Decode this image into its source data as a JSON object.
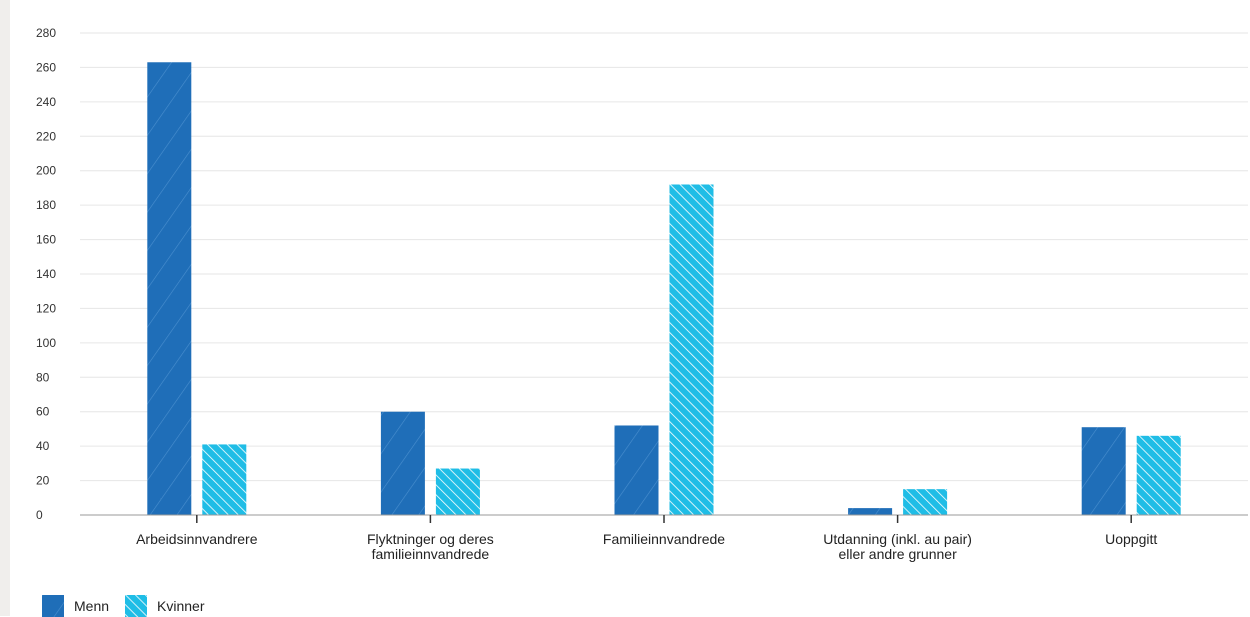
{
  "chart_data": {
    "type": "bar",
    "categories": [
      "Arbeidsinnvandrere",
      "Flyktninger og deres\nfamilieinnvandrede",
      "Familieinnvandrede",
      "Utdanning (inkl. au pair)\neller andre grunner",
      "Uoppgitt"
    ],
    "series": [
      {
        "name": "Menn",
        "values": [
          263,
          60,
          52,
          4,
          51
        ],
        "color": "#1f6eb8",
        "pattern": "hatch-fine"
      },
      {
        "name": "Kvinner",
        "values": [
          41,
          27,
          192,
          15,
          46
        ],
        "color": "#1fbde6",
        "pattern": "hatch-diagonal"
      }
    ],
    "y_ticks": [
      0,
      20,
      40,
      60,
      80,
      100,
      120,
      140,
      160,
      180,
      200,
      220,
      240,
      260,
      280
    ],
    "ylim": [
      0,
      280
    ],
    "grid": true,
    "legend_position": "bottom-left",
    "title": "",
    "xlabel": "",
    "ylabel": ""
  }
}
